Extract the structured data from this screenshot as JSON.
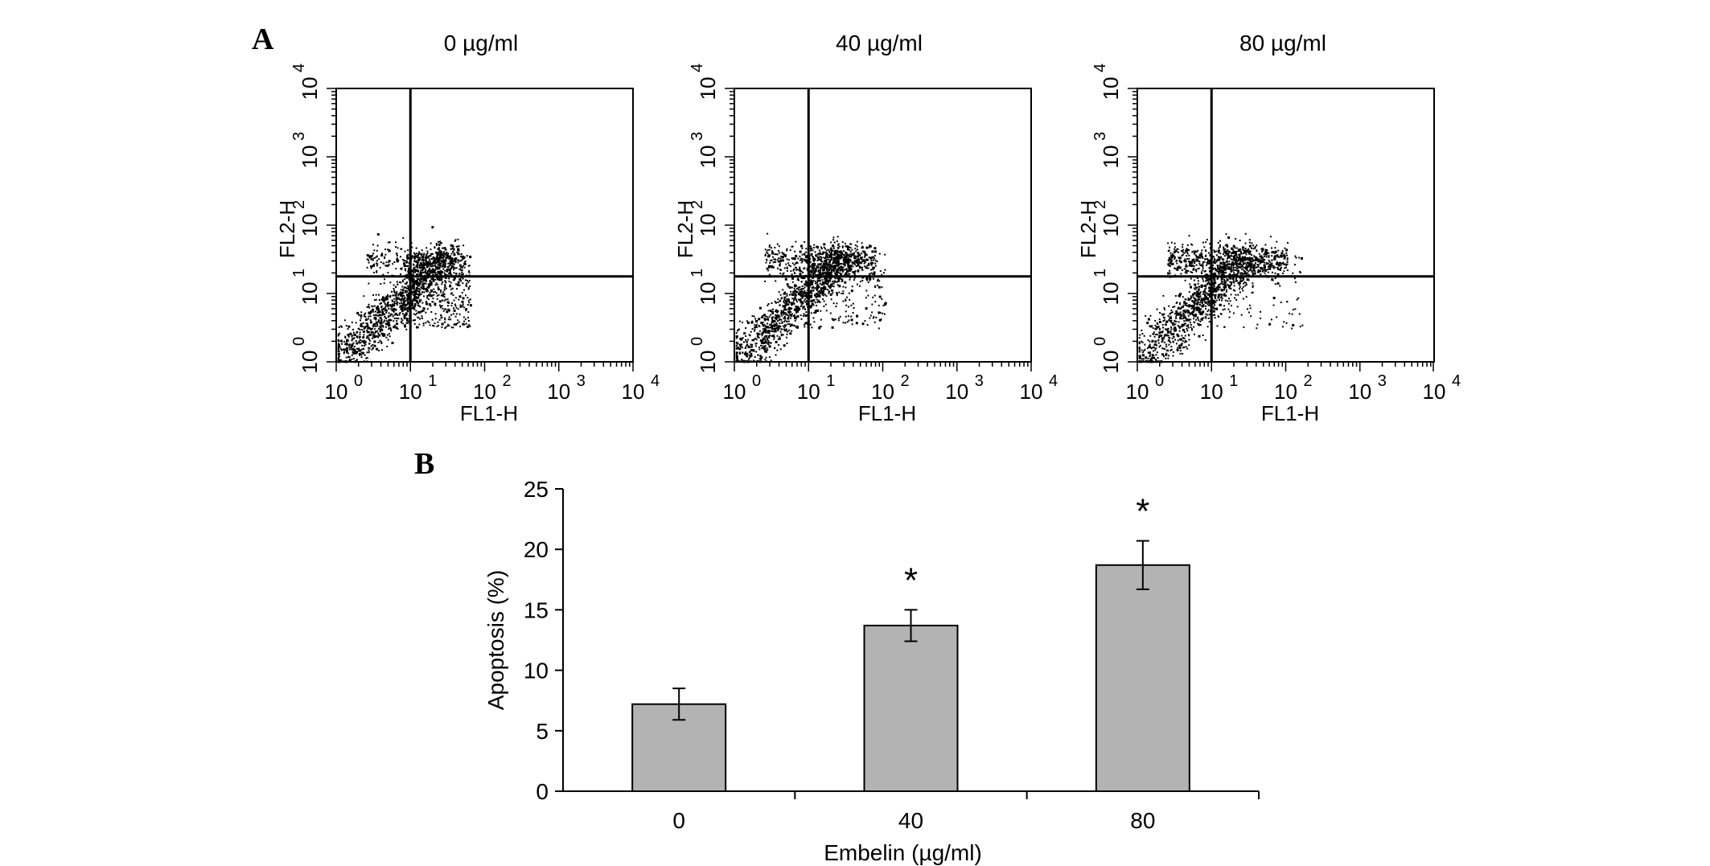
{
  "panel_a": {
    "letter": "A",
    "plots": [
      {
        "title": "0 µg/ml",
        "x_axis_label": "FL1-H",
        "y_axis_label": "FL2-H",
        "seed": 11,
        "spread": 0.1,
        "upper_density": 0.12
      },
      {
        "title": "40 µg/ml",
        "x_axis_label": "FL1-H",
        "y_axis_label": "FL2-H",
        "seed": 29,
        "spread": 0.18,
        "upper_density": 0.22
      },
      {
        "title": "80 µg/ml",
        "x_axis_label": "FL1-H",
        "y_axis_label": "FL2-H",
        "seed": 47,
        "spread": 0.24,
        "upper_density": 0.3
      }
    ],
    "tick_base": "10",
    "tick_exponents": [
      "0",
      "1",
      "2",
      "3",
      "4"
    ]
  },
  "panel_b": {
    "letter": "B"
  },
  "chart_data": [
    {
      "type": "scatter",
      "description_scale": "log",
      "xlabel": "FL1-H",
      "ylabel": "FL2-H",
      "xlim": [
        1,
        10000
      ],
      "ylim": [
        1,
        10000
      ],
      "plots": [
        "0 µg/ml",
        "40 µg/ml",
        "80 µg/ml"
      ]
    },
    {
      "type": "bar",
      "categories": [
        "0",
        "40",
        "80"
      ],
      "values": [
        7.2,
        13.7,
        18.7
      ],
      "errors": [
        1.3,
        1.3,
        2.0
      ],
      "significance": [
        "",
        "*",
        "*"
      ],
      "xlabel": "Embelin (µg/ml)",
      "ylabel": "Apoptosis (%)",
      "ylim": [
        0,
        25
      ],
      "yticks": [
        "0",
        "5",
        "10",
        "15",
        "20",
        "25"
      ],
      "bar_color": "#b3b3b3"
    }
  ]
}
